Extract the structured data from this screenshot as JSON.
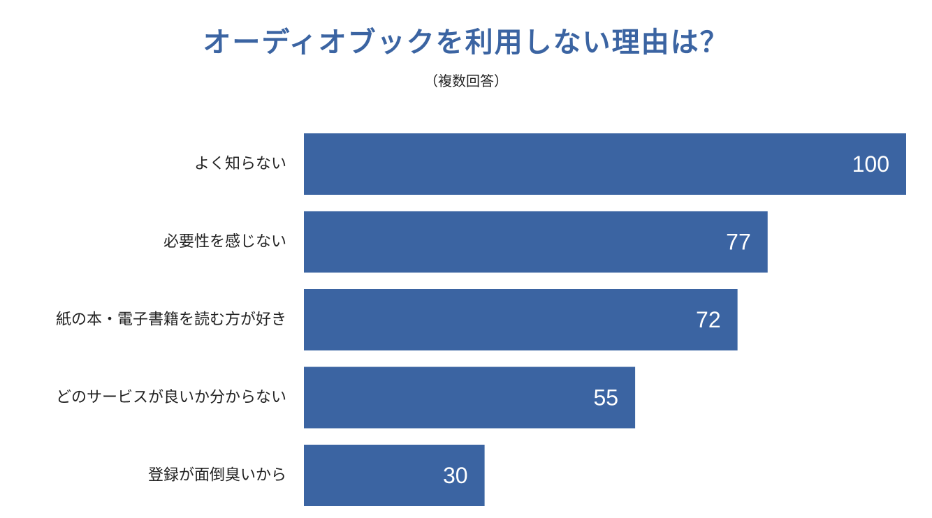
{
  "title": "オーディオブックを利用しない理由は？",
  "subtitle": "（複数回答）",
  "colors": {
    "bar": "#3b64a2",
    "title": "#3b64a2",
    "value_label": "#ffffff",
    "category_label": "#222222"
  },
  "chart_data": {
    "type": "bar",
    "orientation": "horizontal",
    "categories": [
      "よく知らない",
      "必要性を感じない",
      "紙の本・電子書籍を読む方が好き",
      "どのサービスが良いか分からない",
      "登録が面倒臭いから"
    ],
    "values": [
      100,
      77,
      72,
      55,
      30
    ],
    "data_labels": [
      "100",
      "77",
      "72",
      "55",
      "30"
    ],
    "xlim": [
      0,
      100
    ],
    "grid": false,
    "legend": "none"
  }
}
